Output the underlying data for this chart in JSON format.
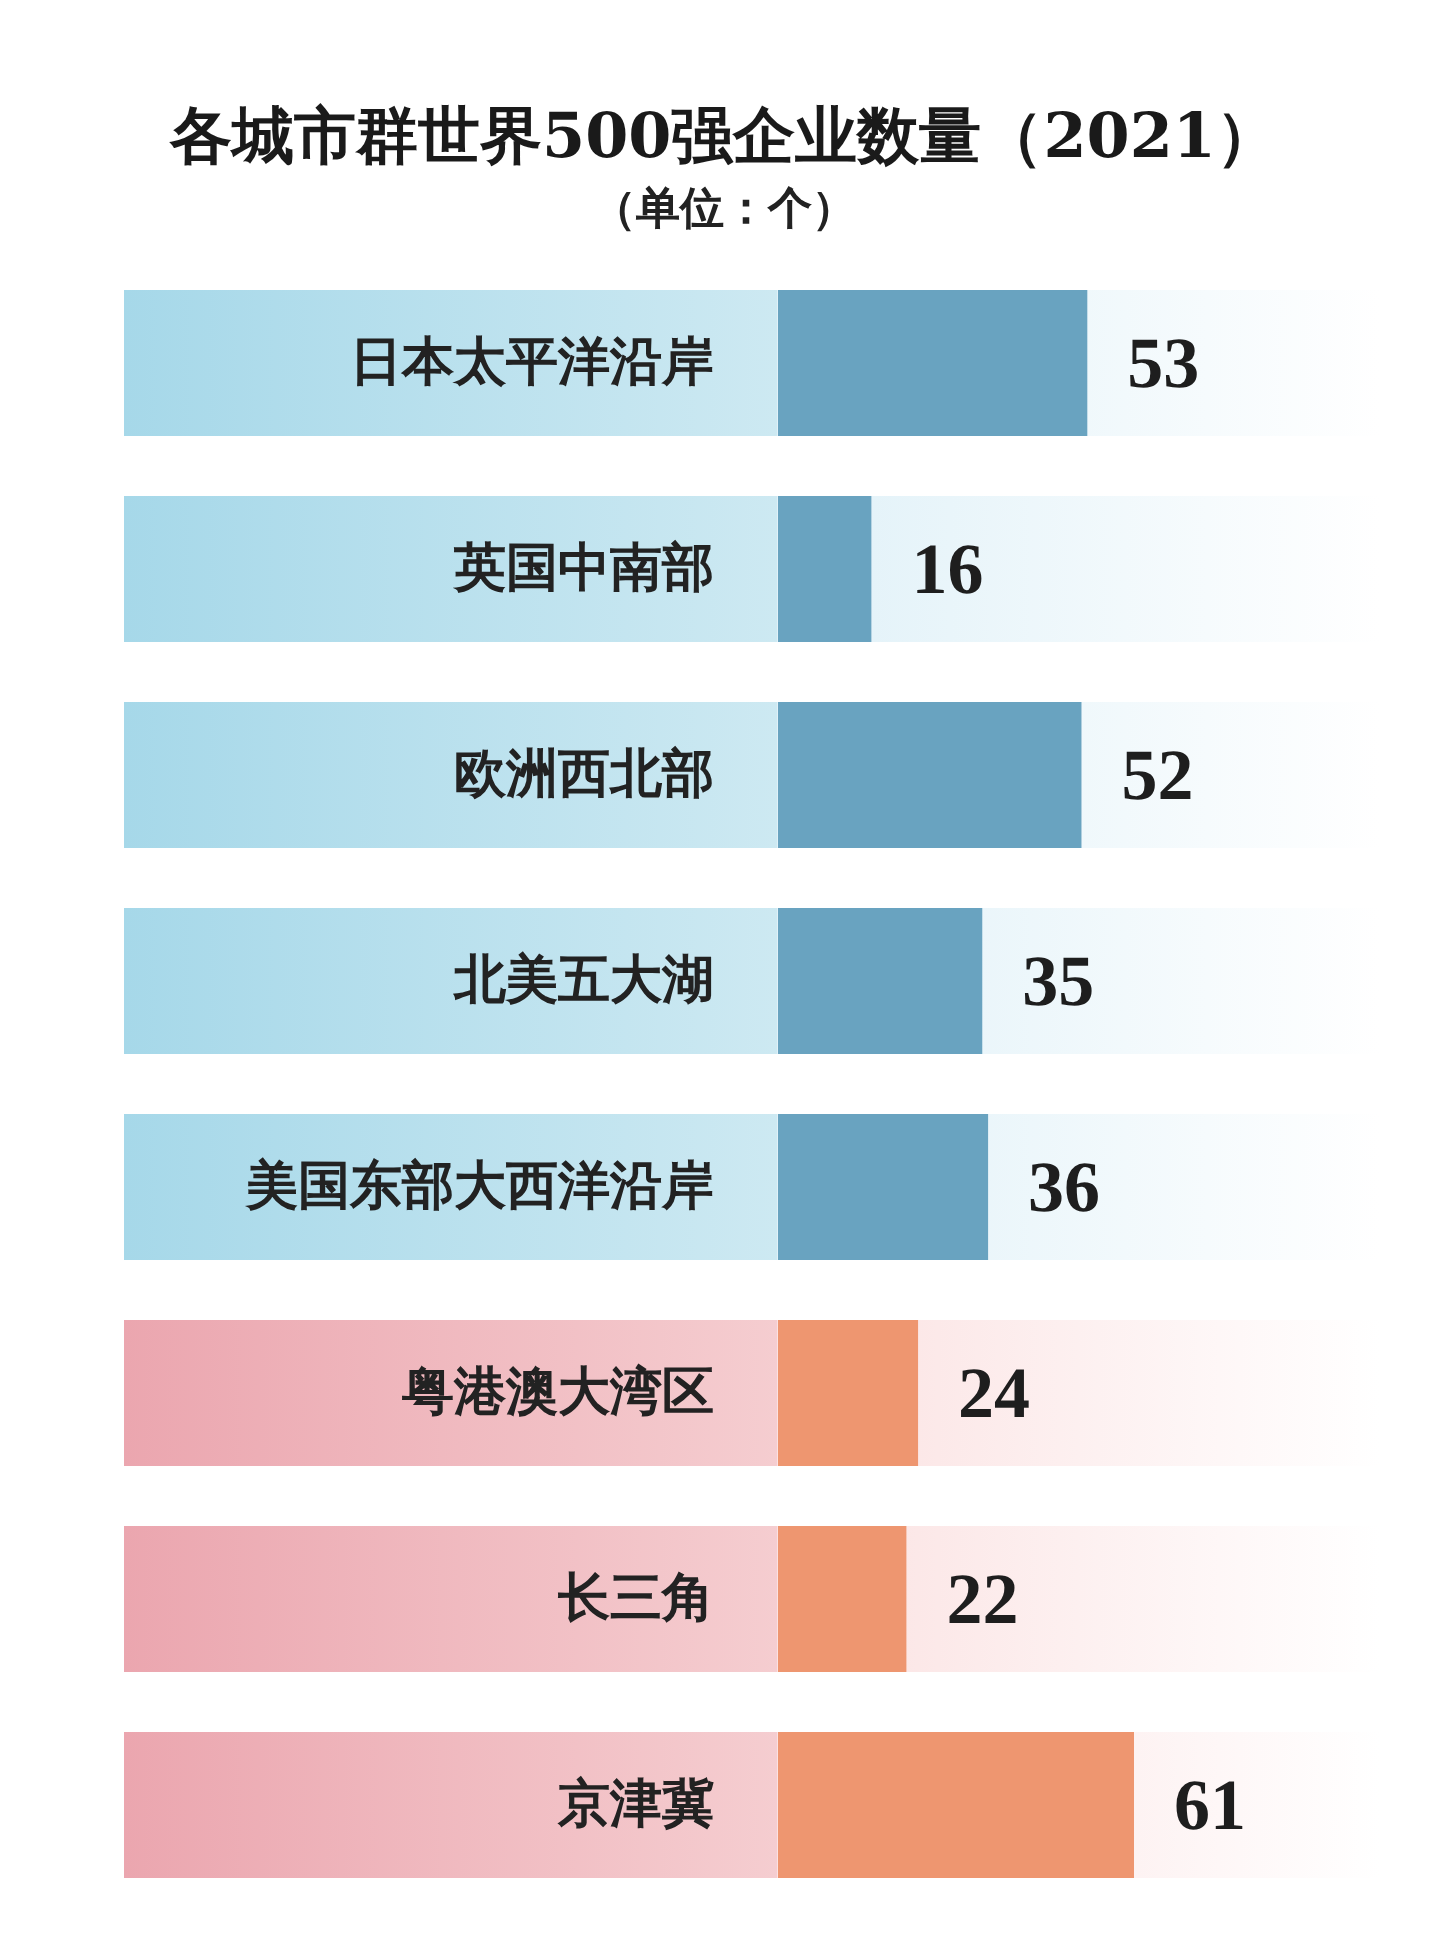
{
  "chart_data": {
    "type": "bar",
    "orientation": "horizontal",
    "title": "各城市群世界500强企业数量（2021）",
    "subtitle": "（单位：个）",
    "categories": [
      "日本太平洋沿岸",
      "英国中南部",
      "欧洲西北部",
      "北美五大湖",
      "美国东部大西洋沿岸",
      "粤港澳大湾区",
      "长三角",
      "京津冀"
    ],
    "values": [
      53,
      16,
      52,
      35,
      36,
      24,
      22,
      61
    ],
    "colors": [
      "#69a3c0",
      "#69a3c0",
      "#69a3c0",
      "#69a3c0",
      "#69a3c0",
      "#ee9670",
      "#ee9670",
      "#ee9670"
    ],
    "data_labels": true,
    "tick_labels": "y"
  }
}
